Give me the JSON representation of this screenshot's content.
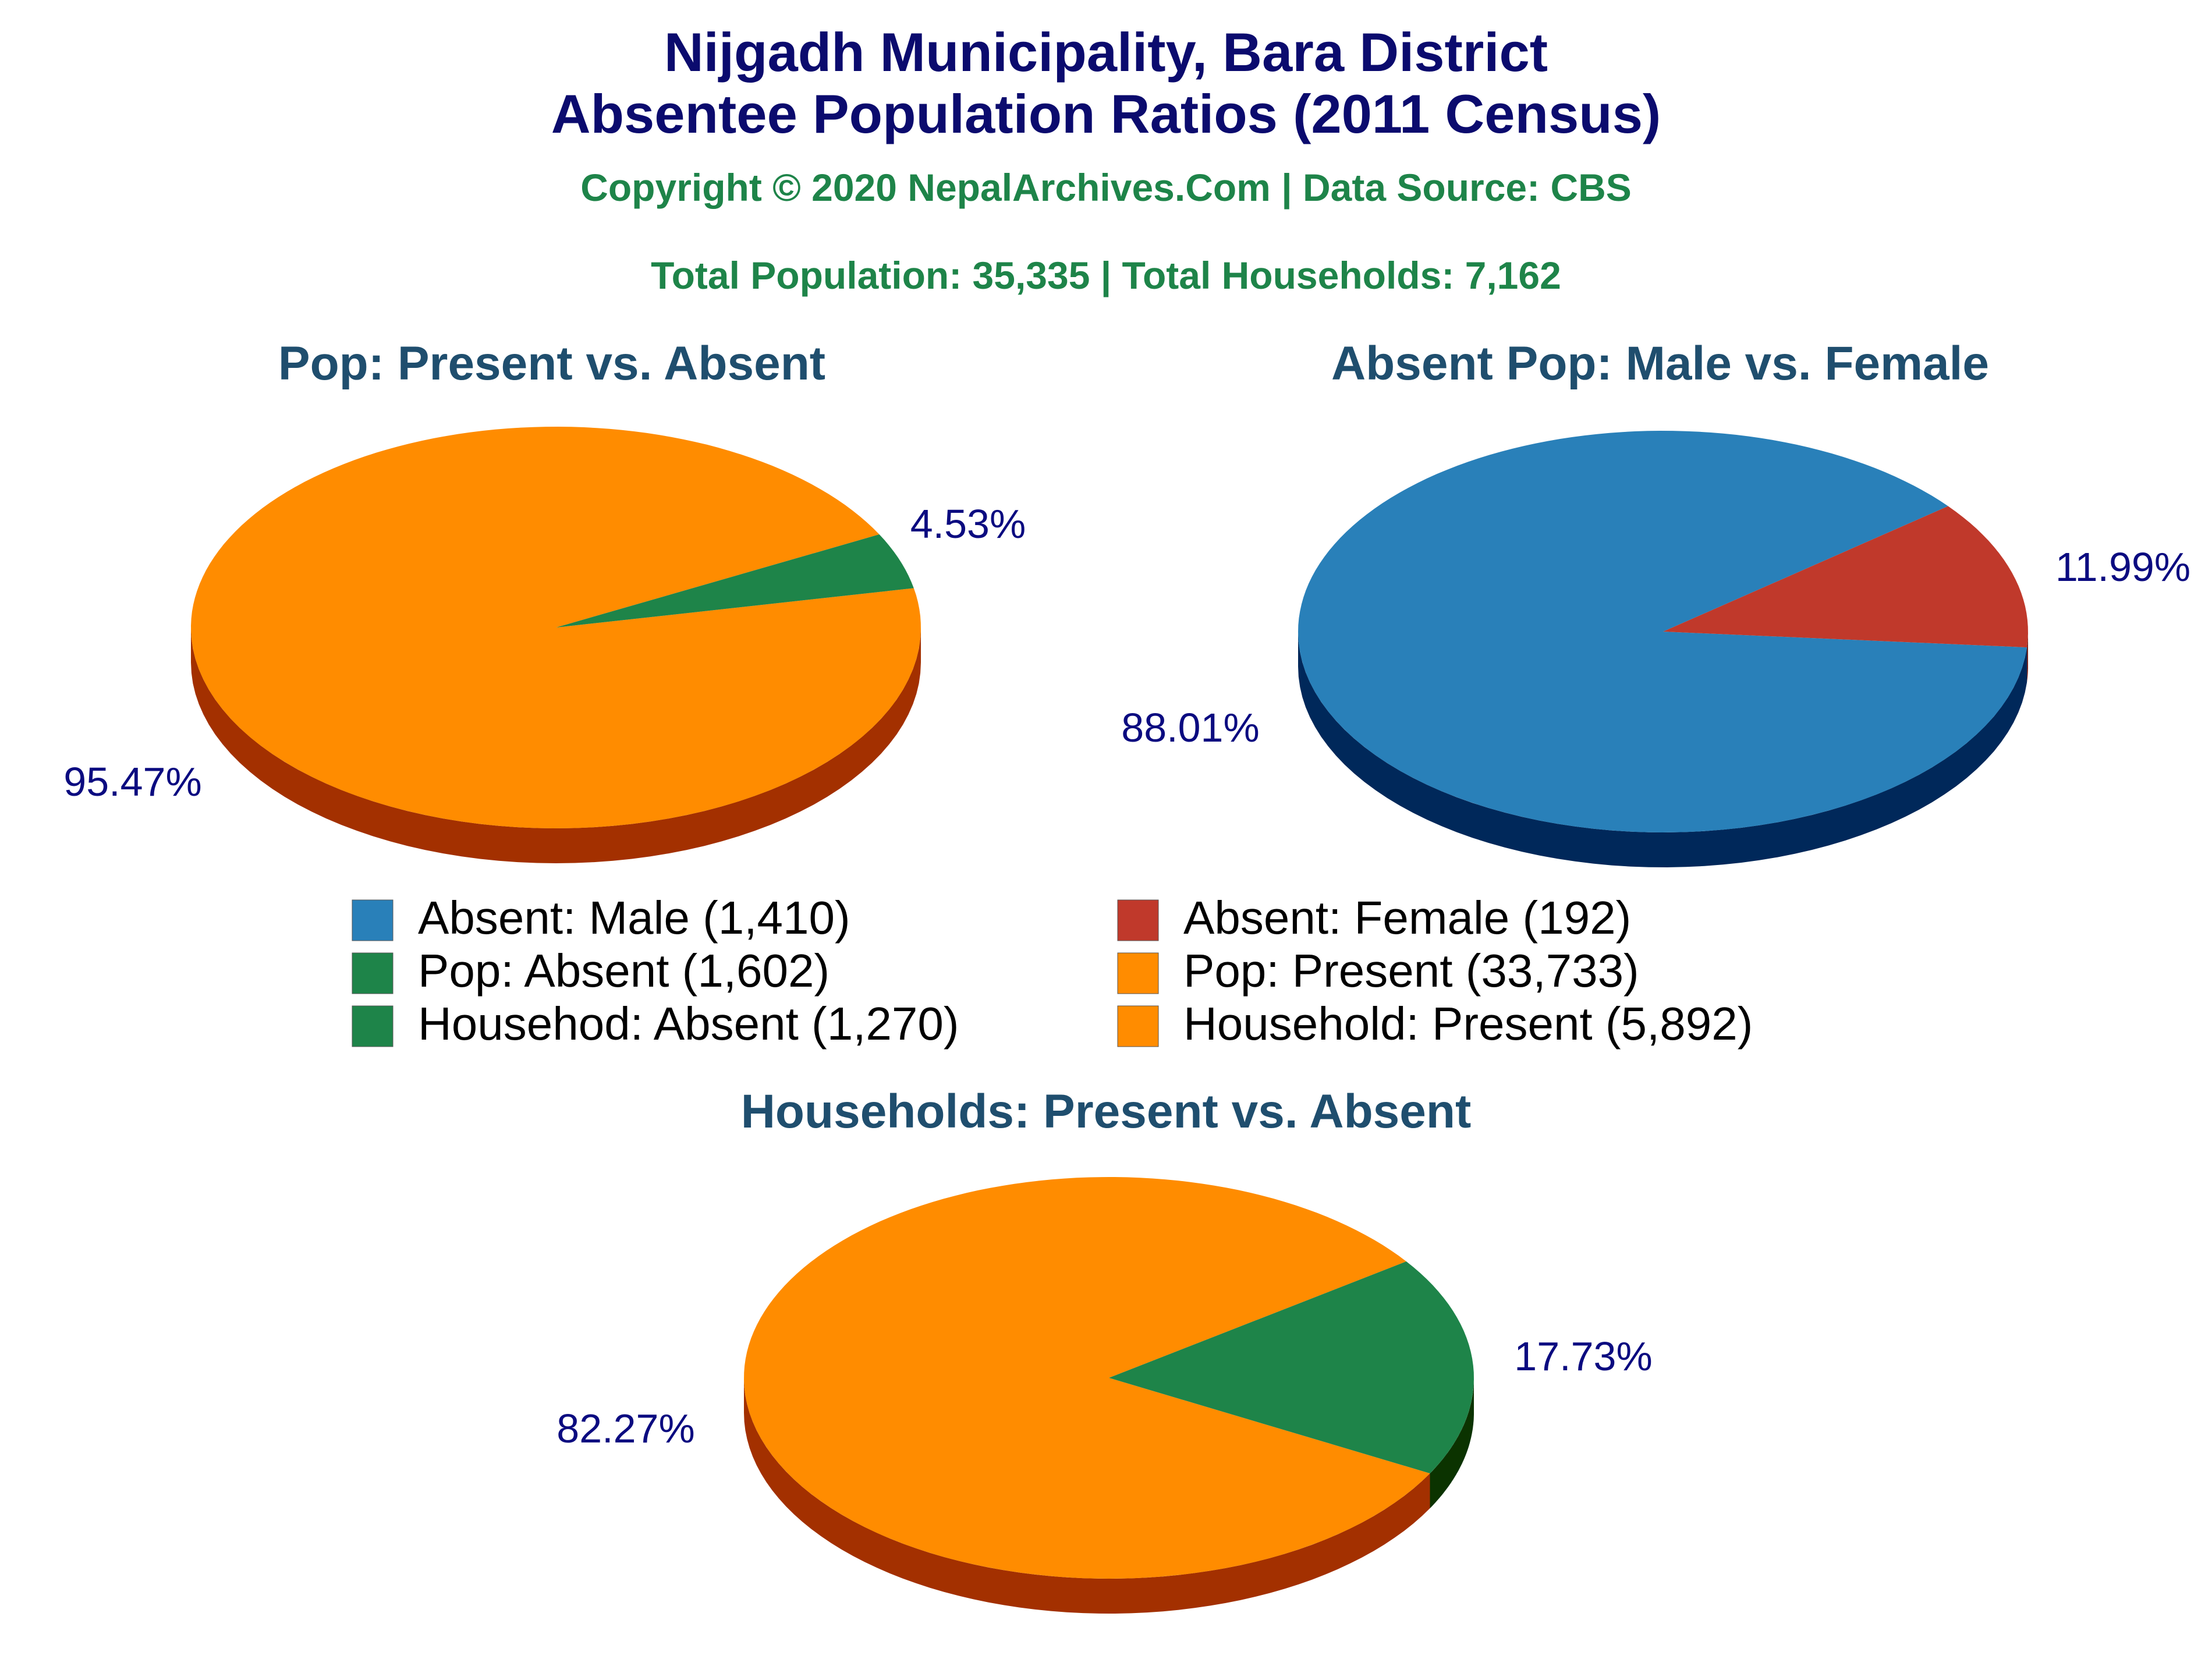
{
  "title_line1": "Nijgadh Municipality, Bara District",
  "title_line2": "Absentee Population Ratios (2011 Census)",
  "copyright": "Copyright © 2020 NepalArchives.Com | Data Source: CBS",
  "totals": "Total Population: 35,335 | Total Households: 7,162",
  "colors": {
    "title": "#0b0b6e",
    "subtitle": "#1e8449",
    "pie_title": "#1f4e6e",
    "pct_label": "#0b0b80",
    "legend_text": "#000000"
  },
  "chart_data": [
    {
      "type": "pie",
      "title": "Pop: Present vs. Absent",
      "slices": [
        {
          "label": "Pop: Present",
          "value": 33733,
          "percent": 95.47,
          "pct_text": "95.47%",
          "color": "#ff8c00",
          "side_color": "#a33000"
        },
        {
          "label": "Pop: Absent",
          "value": 1602,
          "percent": 4.53,
          "pct_text": "4.53%",
          "color": "#1e8449",
          "side_color": "#0b3d18"
        }
      ]
    },
    {
      "type": "pie",
      "title": "Absent Pop: Male vs. Female",
      "slices": [
        {
          "label": "Absent: Male",
          "value": 1410,
          "percent": 88.01,
          "pct_text": "88.01%",
          "color": "#2980b9",
          "side_color": "#00285a"
        },
        {
          "label": "Absent: Female",
          "value": 192,
          "percent": 11.99,
          "pct_text": "11.99%",
          "color": "#c0392b",
          "side_color": "#6e1a12"
        }
      ]
    },
    {
      "type": "pie",
      "title": "Households: Present vs. Absent",
      "slices": [
        {
          "label": "Household: Present",
          "value": 5892,
          "percent": 82.27,
          "pct_text": "82.27%",
          "color": "#ff8c00",
          "side_color": "#a33000"
        },
        {
          "label": "Househod: Absent",
          "value": 1270,
          "percent": 17.73,
          "pct_text": "17.73%",
          "color": "#1e8449",
          "side_color": "#0b3300"
        }
      ]
    }
  ],
  "legend": [
    {
      "text": "Absent: Male (1,410)",
      "color": "#2980b9"
    },
    {
      "text": "Absent: Female (192)",
      "color": "#c0392b"
    },
    {
      "text": "Pop: Absent (1,602)",
      "color": "#1e8449"
    },
    {
      "text": "Pop: Present (33,733)",
      "color": "#ff8c00"
    },
    {
      "text": "Househod: Absent (1,270)",
      "color": "#1e8449"
    },
    {
      "text": "Household: Present (5,892)",
      "color": "#ff8c00"
    }
  ]
}
